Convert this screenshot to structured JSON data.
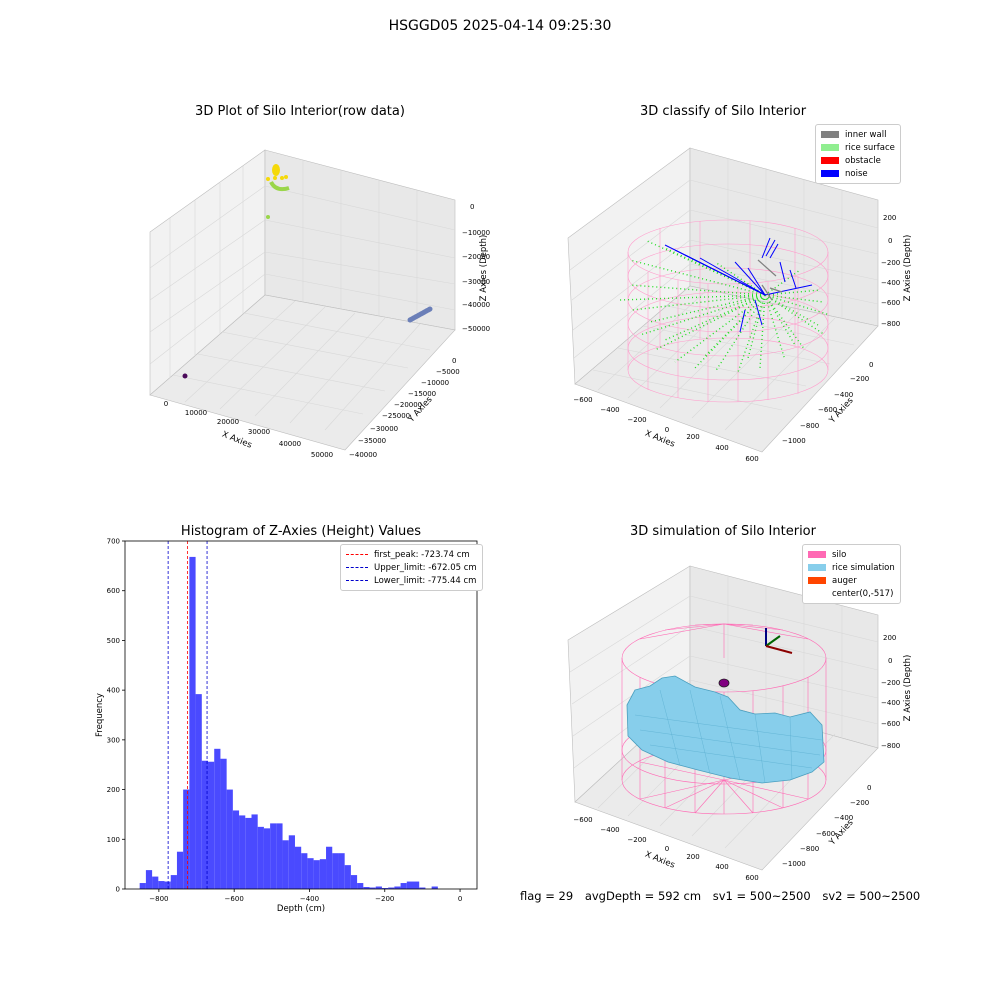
{
  "suptitle": "HSGGD05 2025-04-14 09:25:30",
  "footer": {
    "flag": "flag = 29",
    "avg_depth": "avgDepth = 592 cm",
    "sv1": "sv1 = 500~2500",
    "sv2": "sv2 = 500~2500"
  },
  "chart_data": [
    {
      "type": "scatter",
      "title": "3D Plot of Silo Interior(row data)",
      "xlabel": "X Axies",
      "ylabel": "Y Axies",
      "zlabel": "Z Axies (Depth)",
      "x_ticks": [
        "0",
        "10000",
        "20000",
        "30000",
        "40000",
        "50000"
      ],
      "y_ticks": [
        "0",
        "−5000",
        "−10000",
        "−15000",
        "−20000",
        "−25000",
        "−30000",
        "−35000",
        "−40000"
      ],
      "z_ticks": [
        "0",
        "−10000",
        "−20000",
        "−30000",
        "−40000",
        "−50000"
      ],
      "colors": {
        "yellow": "#f5d90a",
        "green": "#9ad64a",
        "blue": "#6b7fb8",
        "purple": "#4b0a5a"
      }
    },
    {
      "type": "scatter",
      "title": "3D classify of Silo Interior",
      "xlabel": "X Axies",
      "ylabel": "Y Axies",
      "zlabel": "Z Axies (Depth)",
      "x_ticks": [
        "−600",
        "−400",
        "−200",
        "0",
        "200",
        "400",
        "600"
      ],
      "y_ticks": [
        "0",
        "−200",
        "−400",
        "−600",
        "−800",
        "−1000"
      ],
      "z_ticks": [
        "200",
        "0",
        "−200",
        "−400",
        "−600",
        "−800"
      ],
      "legend": [
        {
          "label": "inner wall",
          "color": "#808080"
        },
        {
          "label": "rice surface",
          "color": "#90ee90"
        },
        {
          "label": "obstacle",
          "color": "#ff0000"
        },
        {
          "label": "noise",
          "color": "#0000ff"
        }
      ]
    },
    {
      "type": "bar",
      "title": "Histogram of Z-Axies (Height) Values",
      "xlabel": "Depth (cm)",
      "ylabel": "Frequency",
      "xlim": [
        -890,
        45
      ],
      "ylim": [
        0,
        700
      ],
      "x_ticks": [
        {
          "value": -800,
          "label": "−800"
        },
        {
          "value": -600,
          "label": "−600"
        },
        {
          "value": -400,
          "label": "−400"
        },
        {
          "value": -200,
          "label": "−200"
        },
        {
          "value": 0,
          "label": "0"
        }
      ],
      "y_ticks": [
        {
          "value": 0,
          "label": "0"
        },
        {
          "value": 100,
          "label": "100"
        },
        {
          "value": 200,
          "label": "200"
        },
        {
          "value": 300,
          "label": "300"
        },
        {
          "value": 400,
          "label": "400"
        },
        {
          "value": 500,
          "label": "500"
        },
        {
          "value": 600,
          "label": "600"
        },
        {
          "value": 700,
          "label": "700"
        }
      ],
      "bar_color": "#4a4aff",
      "bin_start": -851,
      "bin_width": 16.5,
      "values": [
        12,
        38,
        25,
        16,
        15,
        28,
        75,
        200,
        668,
        392,
        258,
        256,
        282,
        262,
        200,
        158,
        148,
        143,
        150,
        125,
        122,
        132,
        132,
        98,
        108,
        85,
        72,
        62,
        58,
        60,
        85,
        72,
        72,
        48,
        28,
        12,
        4,
        3,
        5,
        2,
        3,
        5,
        12,
        15,
        15,
        3,
        0,
        5
      ],
      "vlines": [
        {
          "value": -723.74,
          "color": "#ff0000",
          "label": "first_peak: -723.74 cm"
        },
        {
          "value": -672.05,
          "color": "#0000cc",
          "label": "Upper_limit: -672.05 cm"
        },
        {
          "value": -775.44,
          "color": "#0000cc",
          "label": "Lower_limit: -775.44 cm"
        }
      ],
      "legend_position": "top-right"
    },
    {
      "type": "area",
      "title": "3D simulation of Silo Interior",
      "xlabel": "X Axies",
      "ylabel": "Y Axies",
      "zlabel": "Z Axies (Depth)",
      "x_ticks": [
        "−600",
        "−400",
        "−200",
        "0",
        "200",
        "400",
        "600"
      ],
      "y_ticks": [
        "0",
        "−200",
        "−400",
        "−600",
        "−800",
        "−1000"
      ],
      "z_ticks": [
        "200",
        "0",
        "−200",
        "−400",
        "−600",
        "−800"
      ],
      "legend": [
        {
          "label": "silo",
          "color": "#ff69b4"
        },
        {
          "label": "rice simulation",
          "color": "#87ceeb"
        },
        {
          "label": "auger",
          "color": "#ff4500"
        },
        {
          "label": "center(0,-517)",
          "color": "none"
        }
      ]
    }
  ]
}
